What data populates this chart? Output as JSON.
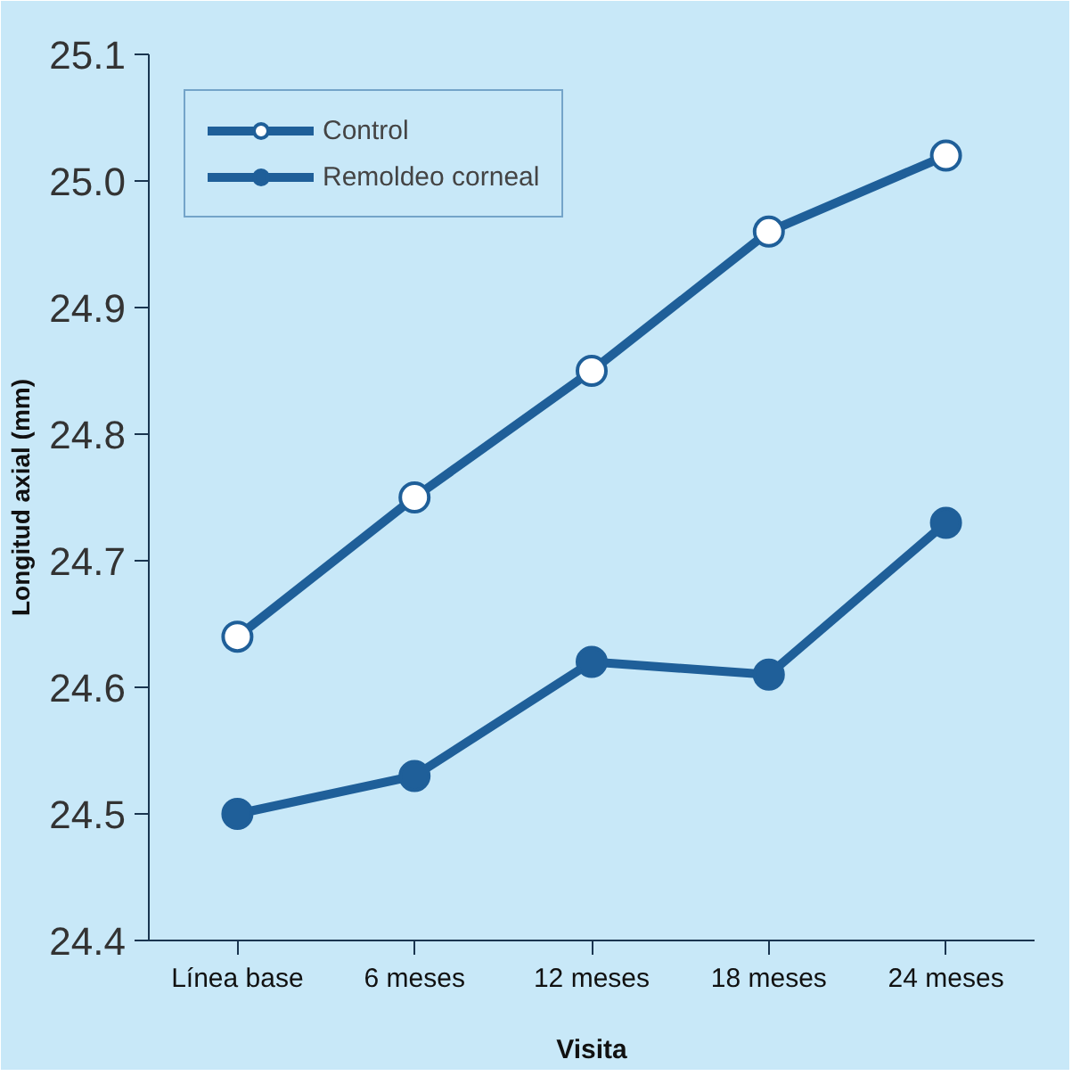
{
  "chart_data": {
    "type": "line",
    "xlabel": "Visita",
    "ylabel": "Longitud axial (mm)",
    "categories": [
      "Línea base",
      "6 meses",
      "12 meses",
      "18 meses",
      "24 meses"
    ],
    "series": [
      {
        "name": "Control",
        "color": "#1f5f99",
        "values": [
          24.64,
          24.75,
          24.85,
          24.96,
          25.02
        ]
      },
      {
        "name": "Remoldeo corneal",
        "color": "#1f5f99",
        "values": [
          24.5,
          24.53,
          24.62,
          24.61,
          24.73
        ]
      }
    ],
    "ylim": [
      24.4,
      25.1
    ],
    "yticks": [
      24.4,
      24.5,
      24.6,
      24.7,
      24.8,
      24.9,
      {
        "value": 25.0,
        "label": "25.0"
      },
      25.1
    ],
    "grid": false,
    "marker": "circle",
    "legend": "top left",
    "line_style": "solid"
  }
}
